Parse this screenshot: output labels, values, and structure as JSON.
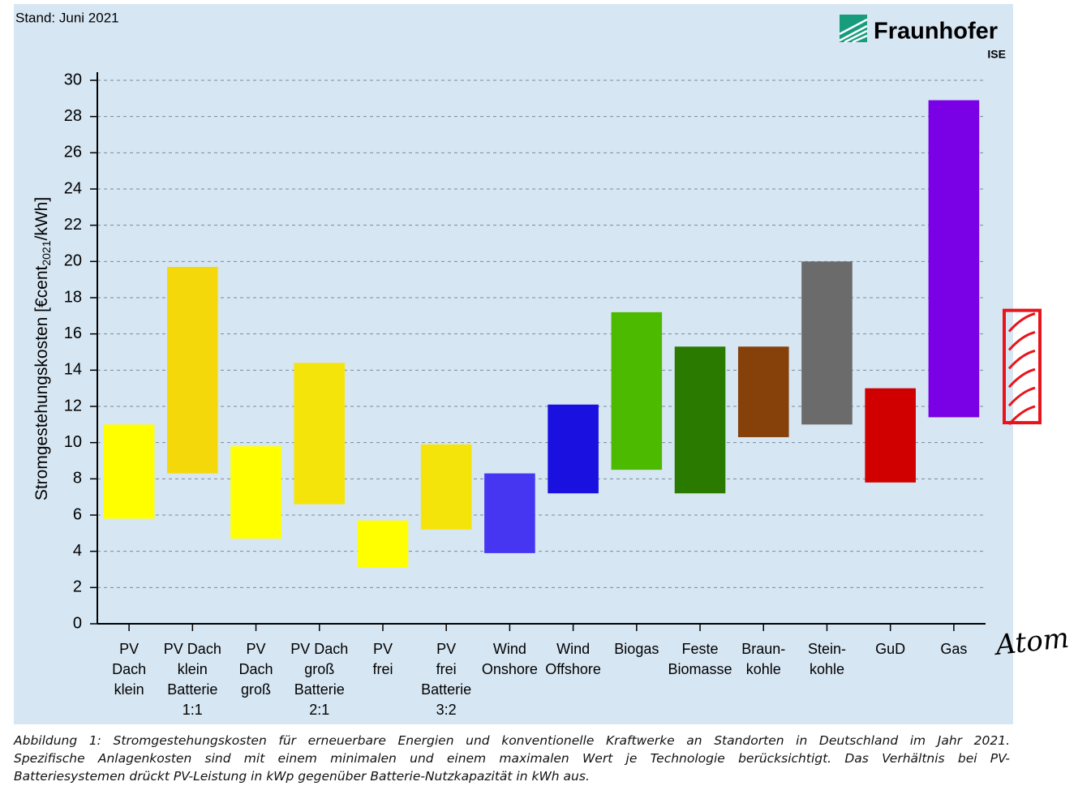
{
  "chart_data": {
    "type": "floating_bar",
    "subtitle": "Stand: Juni 2021",
    "logo": {
      "name": "Fraunhofer",
      "unit": "ISE"
    },
    "ylabel": {
      "text": "Stromgestehungskosten [€cent",
      "sub": "2021",
      "unit": "/kWh]"
    },
    "categories": [
      [
        "PV",
        "Dach",
        "klein"
      ],
      [
        "PV Dach",
        "klein",
        "Batterie",
        "1:1"
      ],
      [
        "PV",
        "Dach",
        "groß"
      ],
      [
        "PV Dach",
        "groß",
        "Batterie",
        "2:1"
      ],
      [
        "PV",
        "frei"
      ],
      [
        "PV",
        "frei",
        "Batterie",
        "3:2"
      ],
      [
        "Wind",
        "Onshore"
      ],
      [
        "Wind",
        "Offshore"
      ],
      [
        "Biogas"
      ],
      [
        "Feste",
        "Biomasse"
      ],
      [
        "Braun-",
        "kohle"
      ],
      [
        "Stein-",
        "kohle"
      ],
      [
        "GuD"
      ],
      [
        "Gas"
      ]
    ],
    "values": [
      [
        5.8,
        11.0
      ],
      [
        8.3,
        19.7
      ],
      [
        4.7,
        9.8
      ],
      [
        6.6,
        14.4
      ],
      [
        3.1,
        5.7
      ],
      [
        5.2,
        9.9
      ],
      [
        3.9,
        8.3
      ],
      [
        7.2,
        12.1
      ],
      [
        8.5,
        17.2
      ],
      [
        7.2,
        15.3
      ],
      [
        10.3,
        15.3
      ],
      [
        11.0,
        20.0
      ],
      [
        7.8,
        13.0
      ],
      [
        11.4,
        28.9
      ]
    ],
    "colors": [
      "#ffff00",
      "#f5d80a",
      "#ffff00",
      "#f5e40a",
      "#ffff00",
      "#f5e40a",
      "#4636f2",
      "#1a10e0",
      "#4cbb00",
      "#2a7a00",
      "#86400a",
      "#6b6b6b",
      "#d00000",
      "#7a00e6"
    ],
    "ylim": [
      0,
      30
    ],
    "yticks": [
      0,
      2,
      4,
      6,
      8,
      10,
      12,
      14,
      16,
      18,
      20,
      22,
      24,
      26,
      28,
      30
    ],
    "grid": true,
    "annotation": {
      "label": "Atom",
      "range": [
        11.1,
        17.3
      ],
      "color": "#e8141c"
    },
    "caption": [
      "Abbildung 1: Stromgestehungskosten für erneuerbare Energien und konventionelle Kraftwerke an Standorten in Deutschland im Jahr 2021.",
      "Spezifische Anlagenkosten sind mit einem minimalen und einem maximalen Wert je Technologie berücksichtigt. Das Verhältnis bei PV-",
      "Batteriesystemen drückt PV-Leistung in kWp gegenüber Batterie-Nutzkapazität in kWh aus."
    ]
  }
}
